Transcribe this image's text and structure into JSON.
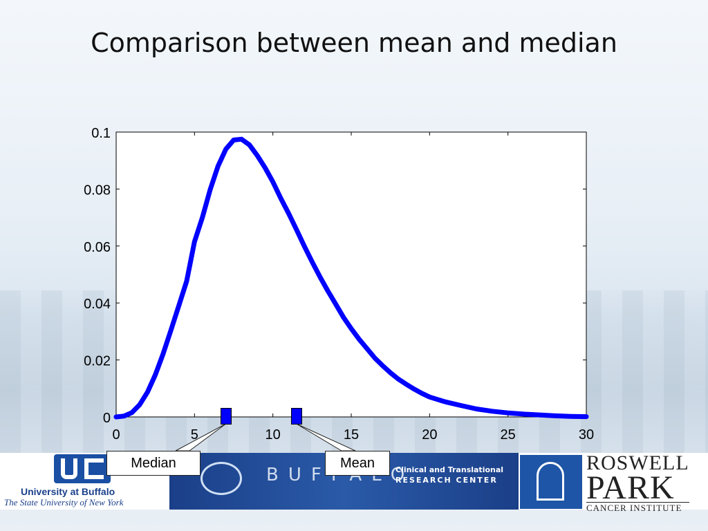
{
  "slide": {
    "title": "Comparison between mean and median"
  },
  "chart_data": {
    "type": "line",
    "title": "",
    "xlabel": "",
    "ylabel": "",
    "xlim": [
      0,
      30
    ],
    "ylim": [
      0,
      0.1
    ],
    "xticks": [
      0,
      5,
      10,
      15,
      20,
      25,
      30
    ],
    "xtick_labels": [
      "0",
      "5",
      "10",
      "15",
      "20",
      "25",
      "30"
    ],
    "yticks": [
      0,
      0.02,
      0.04,
      0.06,
      0.08,
      0.1
    ],
    "ytick_labels": [
      "0",
      "0.02",
      "0.04",
      "0.06",
      "0.08",
      "0.1"
    ],
    "grid": false,
    "line_color": "#0000ff",
    "series": [
      {
        "x": [
          0,
          0.5,
          1,
          1.5,
          2,
          2.5,
          3,
          3.5,
          4,
          4.5,
          5,
          5.5,
          6,
          6.5,
          7,
          7.5,
          8,
          8.5,
          9,
          9.5,
          10,
          10.5,
          11,
          11.5,
          12,
          12.5,
          13,
          13.5,
          14,
          14.5,
          15,
          15.5,
          16,
          16.5,
          17,
          17.5,
          18,
          18.5,
          19,
          19.5,
          20,
          21,
          22,
          23,
          24,
          25,
          26,
          27,
          28,
          29,
          30
        ],
        "y": [
          0,
          0.0003,
          0.0015,
          0.0043,
          0.0087,
          0.0148,
          0.0222,
          0.0305,
          0.0391,
          0.0477,
          0.0615,
          0.07,
          0.0798,
          0.088,
          0.094,
          0.0972,
          0.0975,
          0.0955,
          0.0918,
          0.0875,
          0.0825,
          0.0768,
          0.0715,
          0.0658,
          0.06,
          0.0545,
          0.0492,
          0.0443,
          0.0397,
          0.035,
          0.031,
          0.0273,
          0.024,
          0.0207,
          0.018,
          0.0155,
          0.0133,
          0.0115,
          0.0098,
          0.0083,
          0.007,
          0.0053,
          0.004,
          0.0028,
          0.002,
          0.0014,
          0.001,
          0.0007,
          0.0004,
          0.0002,
          0.0001
        ]
      }
    ],
    "markers": [
      {
        "name": "median",
        "x": 7,
        "label": "Median"
      },
      {
        "name": "mean",
        "x": 11.5,
        "label": "Mean"
      }
    ]
  },
  "footer": {
    "ub_name": "University at Buffalo",
    "ub_tagline": "The State University of New York",
    "buffalo_text": "BUFFALO",
    "ctrc_line1": "Clinical and Translational",
    "ctrc_line2": "RESEARCH CENTER",
    "rp_line1": "ROSWELL",
    "rp_line2": "PARK",
    "rp_line3": "CANCER INSTITUTE"
  }
}
